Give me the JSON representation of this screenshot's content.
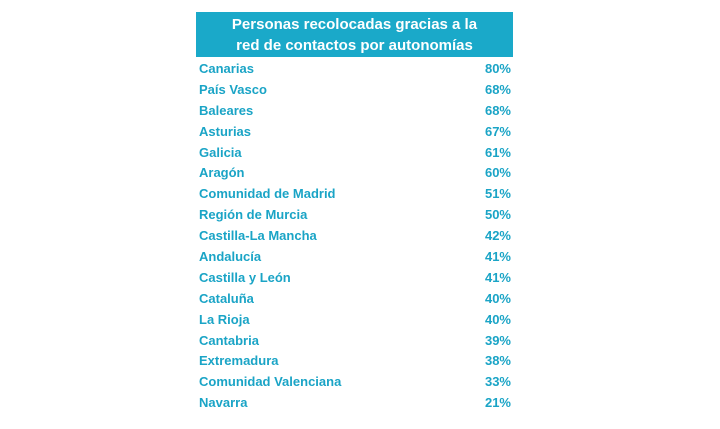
{
  "colors": {
    "header_bg": "#1aa9c9",
    "header_text": "#ffffff",
    "row_text": "#1aa4c6"
  },
  "header": {
    "line1": "Personas recolocadas gracias a la",
    "line2": "red de contactos por autonomías"
  },
  "chart_data": {
    "type": "table",
    "title": "Personas recolocadas gracias a la red de contactos por autonomías",
    "rows": [
      {
        "name": "Canarias",
        "value": "80%"
      },
      {
        "name": "País Vasco",
        "value": "68%"
      },
      {
        "name": "Baleares",
        "value": "68%"
      },
      {
        "name": "Asturias",
        "value": "67%"
      },
      {
        "name": "Galicia",
        "value": "61%"
      },
      {
        "name": "Aragón",
        "value": "60%"
      },
      {
        "name": "Comunidad de Madrid",
        "value": "51%"
      },
      {
        "name": "Región de Murcia",
        "value": "50%"
      },
      {
        "name": "Castilla-La Mancha",
        "value": "42%"
      },
      {
        "name": "Andalucía",
        "value": "41%"
      },
      {
        "name": "Castilla y León",
        "value": "41%"
      },
      {
        "name": "Cataluña",
        "value": "40%"
      },
      {
        "name": "La Rioja",
        "value": "40%"
      },
      {
        "name": "Cantabria",
        "value": "39%"
      },
      {
        "name": "Extremadura",
        "value": "38%"
      },
      {
        "name": "Comunidad Valenciana",
        "value": "33%"
      },
      {
        "name": "Navarra",
        "value": "21%"
      }
    ]
  }
}
